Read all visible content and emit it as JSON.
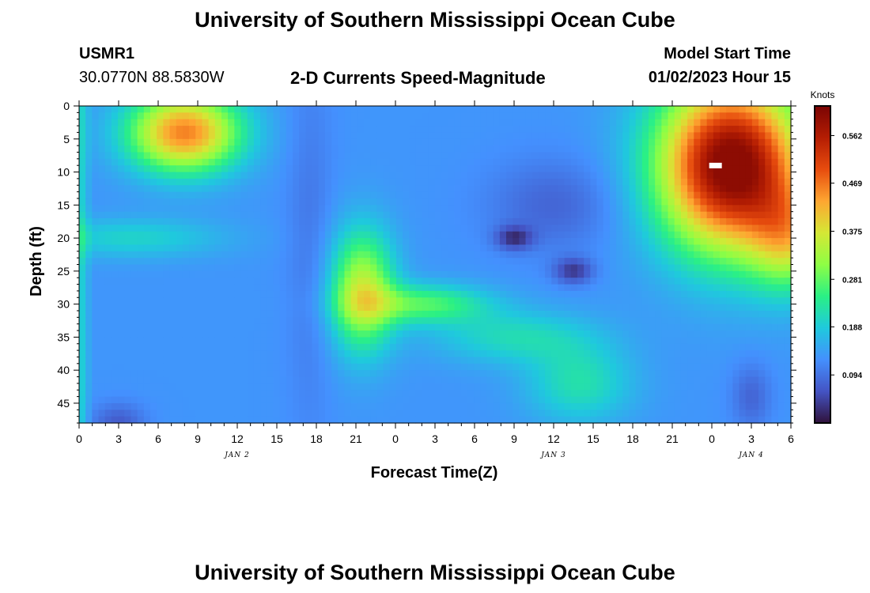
{
  "header": {
    "title": "University of Southern Mississippi Ocean Cube",
    "station": "USMR1",
    "coords": "30.0770N  88.5830W",
    "subtitle": "2-D Currents Speed-Magnitude",
    "model_label": "Model Start Time",
    "model_time": "01/02/2023 Hour 15"
  },
  "footer_title": "University of Southern Mississippi Ocean Cube",
  "chart_data": {
    "type": "heatmap",
    "xlabel": "Forecast Time(Z)",
    "ylabel": "Depth (ft)",
    "x_tick_labels": [
      "0",
      "3",
      "6",
      "9",
      "12",
      "15",
      "18",
      "21",
      "0",
      "3",
      "6",
      "9",
      "12",
      "15",
      "18",
      "21",
      "0",
      "3",
      "6"
    ],
    "x_range_hours": [
      0,
      54
    ],
    "date_labels": [
      {
        "text": "JAN 2",
        "hour": 12
      },
      {
        "text": "JAN 3",
        "hour": 36
      },
      {
        "text": "JAN 4",
        "hour": 51
      }
    ],
    "y_tick_labels": [
      "0",
      "5",
      "10",
      "15",
      "20",
      "25",
      "30",
      "35",
      "40",
      "45"
    ],
    "y_range_ft": [
      0,
      48
    ],
    "colorbar": {
      "unit": "Knots",
      "min": 0.0,
      "max": 0.62,
      "tick_values": [
        0.094,
        0.188,
        0.281,
        0.375,
        0.469,
        0.562
      ],
      "tick_labels": [
        "0.094",
        "0.188",
        "0.281",
        "0.375",
        "0.469",
        "0.562"
      ]
    },
    "colors": {
      "low": "#30123b",
      "high": "#7a0403"
    }
  }
}
